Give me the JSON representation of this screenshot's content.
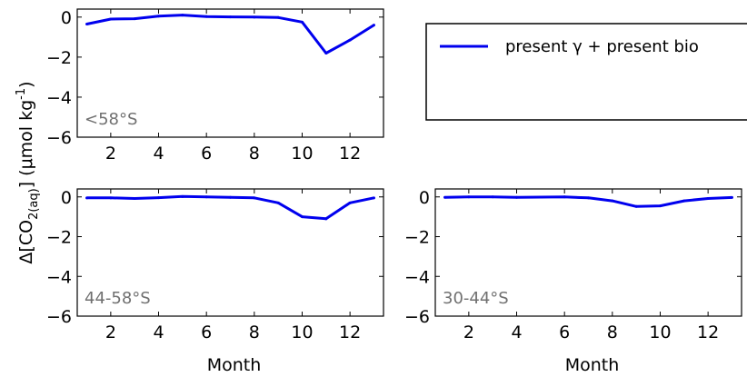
{
  "chart_data": {
    "type": "line",
    "shared_ylabel_parts": [
      "Δ[CO",
      "2(aq)",
      "] (μmol kg",
      "-1",
      ")"
    ],
    "legend": {
      "series_name": "present γ + present bio",
      "line_color": "#0000ee"
    },
    "line_color": "#0000ee",
    "xlabel": "Month",
    "panels": [
      {
        "id": "lt58",
        "region_label": "<58°S",
        "x": [
          1,
          2,
          3,
          4,
          5,
          6,
          7,
          8,
          9,
          10,
          11,
          12,
          13
        ],
        "y": [
          -0.35,
          -0.1,
          -0.08,
          0.05,
          0.1,
          0.03,
          0.01,
          0.0,
          -0.02,
          -0.25,
          -1.8,
          -1.15,
          -0.4
        ],
        "xlim": [
          0.6,
          13.4
        ],
        "ylim": [
          -6,
          0.4
        ],
        "xticks": [
          2,
          4,
          6,
          8,
          10,
          12
        ],
        "yticks": [
          0,
          -2,
          -4,
          -6
        ],
        "ytick_labels": [
          "0",
          "−2",
          "−4",
          "−6"
        ],
        "xtick_labels": [
          "2",
          "4",
          "6",
          "8",
          "10",
          "12"
        ],
        "xlabel": ""
      },
      {
        "id": "44_58",
        "region_label": "44-58°S",
        "x": [
          1,
          2,
          3,
          4,
          5,
          6,
          7,
          8,
          9,
          10,
          11,
          12,
          13
        ],
        "y": [
          -0.05,
          -0.05,
          -0.08,
          -0.04,
          0.02,
          0.0,
          -0.02,
          -0.05,
          -0.3,
          -1.0,
          -1.1,
          -0.3,
          -0.05
        ],
        "xlim": [
          0.6,
          13.4
        ],
        "ylim": [
          -6,
          0.4
        ],
        "xticks": [
          2,
          4,
          6,
          8,
          10,
          12
        ],
        "yticks": [
          0,
          -2,
          -4,
          -6
        ],
        "ytick_labels": [
          "0",
          "−2",
          "−4",
          "−6"
        ],
        "xtick_labels": [
          "2",
          "4",
          "6",
          "8",
          "10",
          "12"
        ],
        "xlabel": "Month"
      },
      {
        "id": "30_44",
        "region_label": "30-44°S",
        "x": [
          1,
          2,
          3,
          4,
          5,
          6,
          7,
          8,
          9,
          10,
          11,
          12,
          13
        ],
        "y": [
          -0.02,
          0.0,
          0.0,
          -0.02,
          -0.01,
          0.0,
          -0.05,
          -0.2,
          -0.48,
          -0.45,
          -0.2,
          -0.08,
          -0.03
        ],
        "xlim": [
          0.6,
          13.4
        ],
        "ylim": [
          -6,
          0.4
        ],
        "xticks": [
          2,
          4,
          6,
          8,
          10,
          12
        ],
        "yticks": [
          0,
          -2,
          -4,
          -6
        ],
        "ytick_labels": [
          "0",
          "−2",
          "−4",
          "−6"
        ],
        "xtick_labels": [
          "2",
          "4",
          "6",
          "8",
          "10",
          "12"
        ],
        "xlabel": "Month"
      }
    ]
  }
}
